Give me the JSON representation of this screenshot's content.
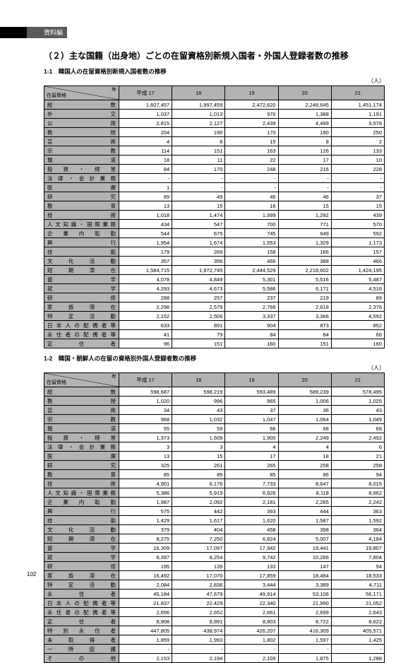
{
  "header_tab": "資料編",
  "main_title": "（２）主な国籍（出身地）ごとの在留資格別新規入国者・外国人登録者数の推移",
  "unit": "（人）",
  "page_number": "102",
  "corner": {
    "top": "年",
    "bottom": "在留資格"
  },
  "table1": {
    "subtitle": "1-1　韓国人の在留資格別新規入国者数の推移",
    "headers": [
      "平成 17",
      "18",
      "19",
      "20",
      "21"
    ],
    "rows": [
      {
        "label": "総数",
        "v": [
          "1,607,457",
          "1,997,459",
          "2,472,620",
          "2,248,645",
          "1,451,174"
        ]
      },
      {
        "label": "外交",
        "v": [
          "1,037",
          "1,013",
          "976",
          "1,388",
          "1,191"
        ]
      },
      {
        "label": "公用",
        "v": [
          "2,815",
          "2,127",
          "2,439",
          "4,499",
          "3,578"
        ]
      },
      {
        "label": "教授",
        "v": [
          "204",
          "190",
          "170",
          "190",
          "250"
        ]
      },
      {
        "label": "芸術",
        "v": [
          "4",
          "8",
          "15",
          "8",
          "2"
        ]
      },
      {
        "label": "宗教",
        "v": [
          "114",
          "151",
          "163",
          "126",
          "133"
        ]
      },
      {
        "label": "報道",
        "v": [
          "18",
          "11",
          "22",
          "17",
          "10"
        ]
      },
      {
        "label": "投資・経営",
        "v": [
          "84",
          "170",
          "248",
          "216",
          "228"
        ]
      },
      {
        "label": "法律・会計業務",
        "v": [
          "-",
          "-",
          "-",
          "-",
          "-"
        ]
      },
      {
        "label": "医療",
        "v": [
          "1",
          "-",
          "-",
          "-",
          "-"
        ]
      },
      {
        "label": "研究",
        "v": [
          "89",
          "49",
          "46",
          "46",
          "37"
        ]
      },
      {
        "label": "教育",
        "v": [
          "13",
          "15",
          "16",
          "15",
          "15"
        ]
      },
      {
        "label": "技術",
        "v": [
          "1,018",
          "1,474",
          "1,999",
          "1,292",
          "439"
        ]
      },
      {
        "label": "人文知識・国際業務",
        "v": [
          "434",
          "547",
          "700",
          "771",
          "570"
        ]
      },
      {
        "label": "企業内転勤",
        "v": [
          "544",
          "675",
          "745",
          "649",
          "592"
        ]
      },
      {
        "label": "興行",
        "v": [
          "1,954",
          "1,674",
          "1,553",
          "1,329",
          "1,173"
        ]
      },
      {
        "label": "技能",
        "v": [
          "179",
          "269",
          "158",
          "166",
          "157"
        ]
      },
      {
        "label": "文化活動",
        "v": [
          "357",
          "356",
          "466",
          "388",
          "466"
        ]
      },
      {
        "label": "短期滞在",
        "v": [
          "1,584,715",
          "1,972,745",
          "2,444,529",
          "2,218,602",
          "1,424,195"
        ]
      },
      {
        "label": "留学",
        "v": [
          "4,078",
          "4,849",
          "5,301",
          "5,516",
          "5,487"
        ]
      },
      {
        "label": "就学",
        "v": [
          "4,293",
          "4,673",
          "5,586",
          "6,171",
          "4,516"
        ]
      },
      {
        "label": "研修",
        "v": [
          "288",
          "257",
          "237",
          "219",
          "89"
        ]
      },
      {
        "label": "家族滞在",
        "v": [
          "2,296",
          "2,579",
          "2,766",
          "2,618",
          "2,376"
        ]
      },
      {
        "label": "特定活動",
        "v": [
          "2,152",
          "2,506",
          "3,337",
          "3,366",
          "4,592"
        ]
      },
      {
        "label": "日本人の配偶者等",
        "v": [
          "633",
          "891",
          "904",
          "873",
          "852"
        ]
      },
      {
        "label": "永住者の配偶者等",
        "v": [
          "41",
          "79",
          "84",
          "84",
          "66"
        ]
      },
      {
        "label": "定住者",
        "v": [
          "96",
          "151",
          "160",
          "151",
          "160"
        ]
      }
    ]
  },
  "table2": {
    "subtitle": "1-2　韓国・朝鮮人の在留の資格別外国人登録者数の推移",
    "headers": [
      "平成 17",
      "18",
      "19",
      "20",
      "21"
    ],
    "rows": [
      {
        "label": "総数",
        "v": [
          "598,687",
          "598,219",
          "593,489",
          "589,239",
          "578,495"
        ]
      },
      {
        "label": "教授",
        "v": [
          "1,020",
          "996",
          "965",
          "1,006",
          "1,025"
        ]
      },
      {
        "label": "芸術",
        "v": [
          "34",
          "43",
          "37",
          "36",
          "43"
        ]
      },
      {
        "label": "宗教",
        "v": [
          "968",
          "1,032",
          "1,047",
          "1,064",
          "1,049"
        ]
      },
      {
        "label": "報道",
        "v": [
          "55",
          "59",
          "66",
          "68",
          "68"
        ]
      },
      {
        "label": "投資・経営",
        "v": [
          "1,373",
          "1,609",
          "1,900",
          "2,249",
          "2,492"
        ]
      },
      {
        "label": "法律・会計業務",
        "v": [
          "3",
          "3",
          "4",
          "4",
          "6"
        ]
      },
      {
        "label": "医療",
        "v": [
          "13",
          "15",
          "17",
          "18",
          "21"
        ]
      },
      {
        "label": "研究",
        "v": [
          "325",
          "261",
          "265",
          "258",
          "258"
        ]
      },
      {
        "label": "教育",
        "v": [
          "85",
          "85",
          "85",
          "86",
          "94"
        ]
      },
      {
        "label": "技術",
        "v": [
          "4,901",
          "6,176",
          "7,733",
          "8,647",
          "8,015"
        ]
      },
      {
        "label": "人文知識・国際業務",
        "v": [
          "5,386",
          "5,919",
          "6,926",
          "8,118",
          "8,962"
        ]
      },
      {
        "label": "企業内転勤",
        "v": [
          "1,987",
          "2,092",
          "2,181",
          "2,265",
          "2,242"
        ]
      },
      {
        "label": "興行",
        "v": [
          "575",
          "442",
          "393",
          "444",
          "363"
        ]
      },
      {
        "label": "技能",
        "v": [
          "1,429",
          "1,617",
          "1,620",
          "1,587",
          "1,592"
        ]
      },
      {
        "label": "文化活動",
        "v": [
          "379",
          "404",
          "458",
          "398",
          "364"
        ]
      },
      {
        "label": "短期滞在",
        "v": [
          "8,275",
          "7,250",
          "6,824",
          "5,007",
          "4,184"
        ]
      },
      {
        "label": "留学",
        "v": [
          "16,309",
          "17,097",
          "17,942",
          "19,441",
          "19,807"
        ]
      },
      {
        "label": "就学",
        "v": [
          "6,397",
          "8,254",
          "9,742",
          "10,286",
          "7,804"
        ]
      },
      {
        "label": "研修",
        "v": [
          "195",
          "139",
          "133",
          "147",
          "94"
        ]
      },
      {
        "label": "家族滞在",
        "v": [
          "16,492",
          "17,070",
          "17,859",
          "18,484",
          "18,533"
        ]
      },
      {
        "label": "特定活動",
        "v": [
          "2,084",
          "2,836",
          "3,444",
          "3,389",
          "4,711"
        ]
      },
      {
        "label": "永住者",
        "v": [
          "45,184",
          "47,679",
          "49,914",
          "53,106",
          "56,171"
        ]
      },
      {
        "label": "日本人の配偶者等",
        "v": [
          "21,837",
          "22,429",
          "22,340",
          "21,990",
          "21,052"
        ]
      },
      {
        "label": "永住者の配偶者等",
        "v": [
          "2,656",
          "2,652",
          "2,661",
          "2,699",
          "2,643"
        ]
      },
      {
        "label": "定住者",
        "v": [
          "8,908",
          "8,891",
          "8,803",
          "8,722",
          "8,622"
        ]
      },
      {
        "label": "特別永住者",
        "v": [
          "447,805",
          "438,974",
          "426,207",
          "416,309",
          "405,571"
        ]
      },
      {
        "label": "未取得者",
        "v": [
          "1,859",
          "1,993",
          "1,802",
          "1,597",
          "1,425"
        ]
      },
      {
        "label": "一時庇護",
        "v": [
          "-",
          "-",
          "-",
          "-",
          "-"
        ]
      },
      {
        "label": "その他",
        "v": [
          "2,153",
          "2,194",
          "2,109",
          "1,875",
          "1,288"
        ]
      }
    ]
  }
}
